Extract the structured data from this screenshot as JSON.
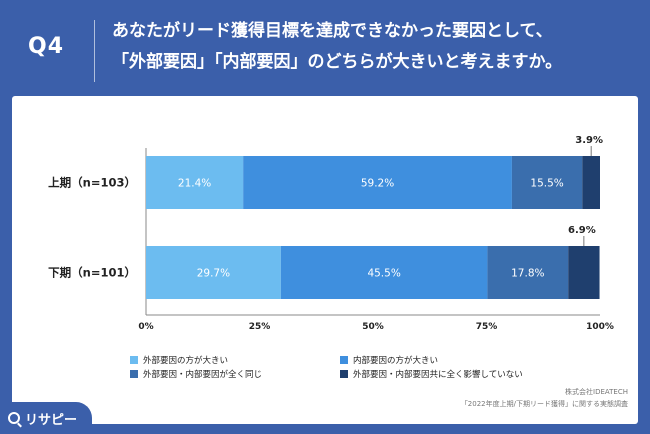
{
  "header": {
    "qnum": "Q4",
    "line1": "あなたがリード獲得目標を達成できなかった要因として、",
    "line2": "「外部要因」「内部要因」のどちらが大きいと考えますか。"
  },
  "chart_data": {
    "type": "bar",
    "orientation": "horizontal",
    "stacked": true,
    "categories": [
      "上期（n=103）",
      "下期（n=101）"
    ],
    "series": [
      {
        "name": "外部要因の方が大きい",
        "values": [
          21.4,
          29.7
        ],
        "labels": [
          "21.4%",
          "29.7%"
        ],
        "color": "#6cbcf0"
      },
      {
        "name": "内部要因の方が大きい",
        "values": [
          59.2,
          45.5
        ],
        "labels": [
          "59.2%",
          "45.5%"
        ],
        "color": "#3f8fde"
      },
      {
        "name": "外部要因・内部要因が全く同じ",
        "values": [
          15.5,
          17.8
        ],
        "labels": [
          "15.5%",
          "17.8%"
        ],
        "color": "#3a6ead"
      },
      {
        "name": "外部要因・内部要因共に全く影響していない",
        "values": [
          3.9,
          6.9
        ],
        "labels": [
          "3.9%",
          "6.9%"
        ],
        "color": "#1f3f6e"
      }
    ],
    "xlim": [
      0,
      100
    ],
    "xticks": [
      0,
      25,
      50,
      75,
      100
    ],
    "xtick_labels": [
      "0%",
      "25%",
      "50%",
      "75%",
      "100%"
    ],
    "grid": false,
    "legend_position": "bottom"
  },
  "source": {
    "line1": "株式会社IDEATECH",
    "line2": "「2022年度上期/下期リード獲得」に関する実態調査"
  },
  "logo": {
    "text": "リサピー"
  }
}
